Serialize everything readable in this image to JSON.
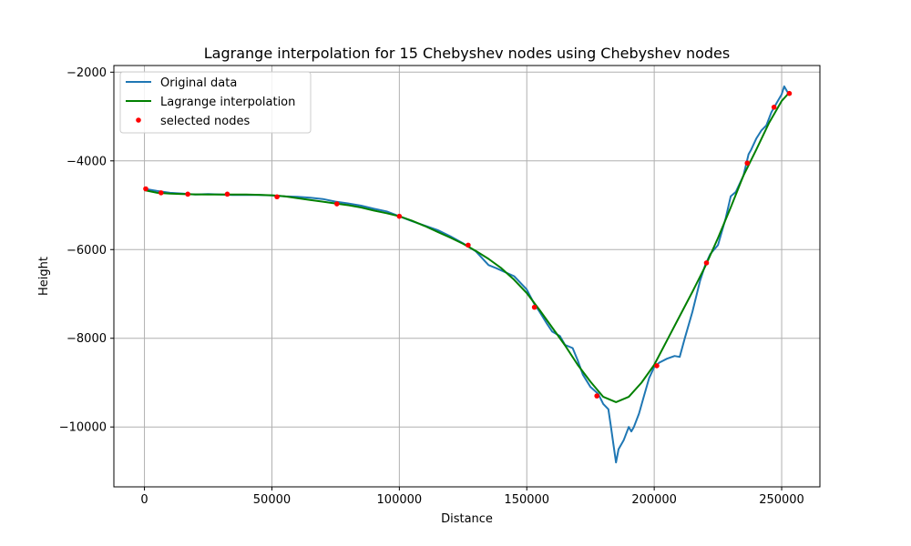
{
  "chart_data": {
    "type": "line",
    "title": "Lagrange interpolation for 15 Chebyshev nodes using Chebyshev nodes",
    "xlabel": "Distance",
    "ylabel": "Height",
    "xlim": [
      -12000,
      265000
    ],
    "ylim": [
      -11350,
      -1850
    ],
    "xticks": [
      0,
      50000,
      100000,
      150000,
      200000,
      250000
    ],
    "xtick_labels": [
      "0",
      "50000",
      "100000",
      "150000",
      "200000",
      "250000"
    ],
    "yticks": [
      -10000,
      -8000,
      -6000,
      -4000,
      -2000
    ],
    "ytick_labels": [
      "−10000",
      "−8000",
      "−6000",
      "−4000",
      "−2000"
    ],
    "grid": true,
    "legend_position": "top-left",
    "legend": [
      {
        "label": "Original data",
        "color": "#1f77b4",
        "kind": "line"
      },
      {
        "label": "Lagrange interpolation",
        "color": "#008000",
        "kind": "line"
      },
      {
        "label": "selected nodes",
        "color": "#ff0000",
        "kind": "marker"
      }
    ],
    "series": [
      {
        "name": "Original data",
        "color": "#1f77b4",
        "x": [
          0,
          5000,
          10000,
          15000,
          20000,
          25000,
          30000,
          35000,
          40000,
          45000,
          50000,
          55000,
          60000,
          65000,
          70000,
          75000,
          80000,
          85000,
          90000,
          95000,
          100000,
          105000,
          110000,
          115000,
          120000,
          125000,
          130000,
          135000,
          138000,
          140000,
          145000,
          150000,
          153000,
          155000,
          158000,
          160000,
          163000,
          165000,
          168000,
          170000,
          172000,
          175000,
          178000,
          180000,
          182000,
          183000,
          184000,
          185000,
          186000,
          188000,
          190000,
          191000,
          192000,
          194000,
          196000,
          198000,
          200000,
          202000,
          205000,
          208000,
          210000,
          212000,
          215000,
          218000,
          220000,
          222000,
          225000,
          228000,
          230000,
          232000,
          235000,
          237000,
          238000,
          240000,
          242000,
          244000,
          246000,
          248000,
          250000,
          251000,
          252000,
          253000
        ],
        "y": [
          -4630,
          -4680,
          -4720,
          -4740,
          -4760,
          -4750,
          -4760,
          -4770,
          -4770,
          -4770,
          -4780,
          -4800,
          -4810,
          -4830,
          -4860,
          -4920,
          -4960,
          -5010,
          -5080,
          -5140,
          -5250,
          -5360,
          -5460,
          -5560,
          -5700,
          -5860,
          -6040,
          -6350,
          -6420,
          -6470,
          -6600,
          -6900,
          -7230,
          -7400,
          -7680,
          -7850,
          -7950,
          -8150,
          -8220,
          -8500,
          -8820,
          -9100,
          -9250,
          -9480,
          -9600,
          -9990,
          -10400,
          -10800,
          -10500,
          -10300,
          -10000,
          -10100,
          -10000,
          -9700,
          -9300,
          -8900,
          -8650,
          -8550,
          -8460,
          -8400,
          -8420,
          -8000,
          -7400,
          -6700,
          -6350,
          -6100,
          -5900,
          -5300,
          -4800,
          -4700,
          -4330,
          -3850,
          -3750,
          -3500,
          -3320,
          -3200,
          -2900,
          -2700,
          -2500,
          -2320,
          -2420,
          -2500
        ]
      },
      {
        "name": "Lagrange interpolation",
        "color": "#008000",
        "x": [
          0,
          5000,
          10000,
          15000,
          20000,
          25000,
          30000,
          35000,
          40000,
          45000,
          50000,
          55000,
          60000,
          65000,
          70000,
          75000,
          80000,
          85000,
          90000,
          95000,
          100000,
          105000,
          110000,
          115000,
          120000,
          125000,
          130000,
          135000,
          140000,
          145000,
          150000,
          155000,
          160000,
          165000,
          170000,
          175000,
          180000,
          185000,
          190000,
          195000,
          200000,
          205000,
          210000,
          215000,
          220000,
          225000,
          230000,
          235000,
          240000,
          245000,
          250000,
          253000
        ],
        "y": [
          -4660,
          -4720,
          -4740,
          -4750,
          -4755,
          -4760,
          -4760,
          -4758,
          -4760,
          -4765,
          -4775,
          -4800,
          -4840,
          -4880,
          -4920,
          -4960,
          -5000,
          -5050,
          -5120,
          -5180,
          -5250,
          -5350,
          -5470,
          -5600,
          -5730,
          -5870,
          -6030,
          -6210,
          -6420,
          -6680,
          -6980,
          -7360,
          -7760,
          -8160,
          -8600,
          -8980,
          -9320,
          -9440,
          -9320,
          -9000,
          -8600,
          -8050,
          -7500,
          -6950,
          -6380,
          -5740,
          -5050,
          -4330,
          -3750,
          -3150,
          -2650,
          -2460
        ]
      }
    ],
    "nodes": {
      "name": "selected nodes",
      "color": "#ff0000",
      "x": [
        500,
        6500,
        17000,
        32500,
        52000,
        75500,
        100000,
        127000,
        153000,
        177500,
        201000,
        220500,
        236500,
        247000,
        253000
      ],
      "y": [
        -4630,
        -4720,
        -4750,
        -4750,
        -4810,
        -4970,
        -5250,
        -5900,
        -7300,
        -9300,
        -8620,
        -6300,
        -4050,
        -2790,
        -2480
      ]
    }
  }
}
